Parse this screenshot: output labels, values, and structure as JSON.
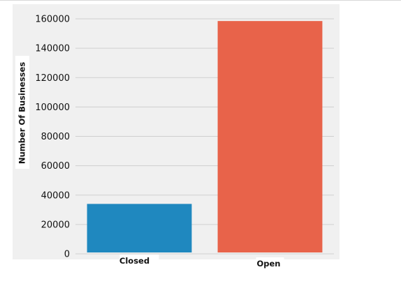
{
  "chart_data": {
    "type": "bar",
    "categories": [
      "Closed",
      "Open"
    ],
    "values": [
      34000,
      158500
    ],
    "title": "",
    "xlabel": "",
    "ylabel": "Number Of Businesses",
    "ylim": [
      0,
      160000
    ],
    "yticks": [
      0,
      20000,
      40000,
      60000,
      80000,
      100000,
      120000,
      140000,
      160000
    ],
    "ytick_labels": [
      "0",
      "20000",
      "40000",
      "60000",
      "80000",
      "100000",
      "120000",
      "140000",
      "160000"
    ],
    "grid": true,
    "colors": [
      "#1f88bf",
      "#e8634a"
    ],
    "background": "#f0f0f0",
    "gridColor": "#cfcfcf"
  }
}
